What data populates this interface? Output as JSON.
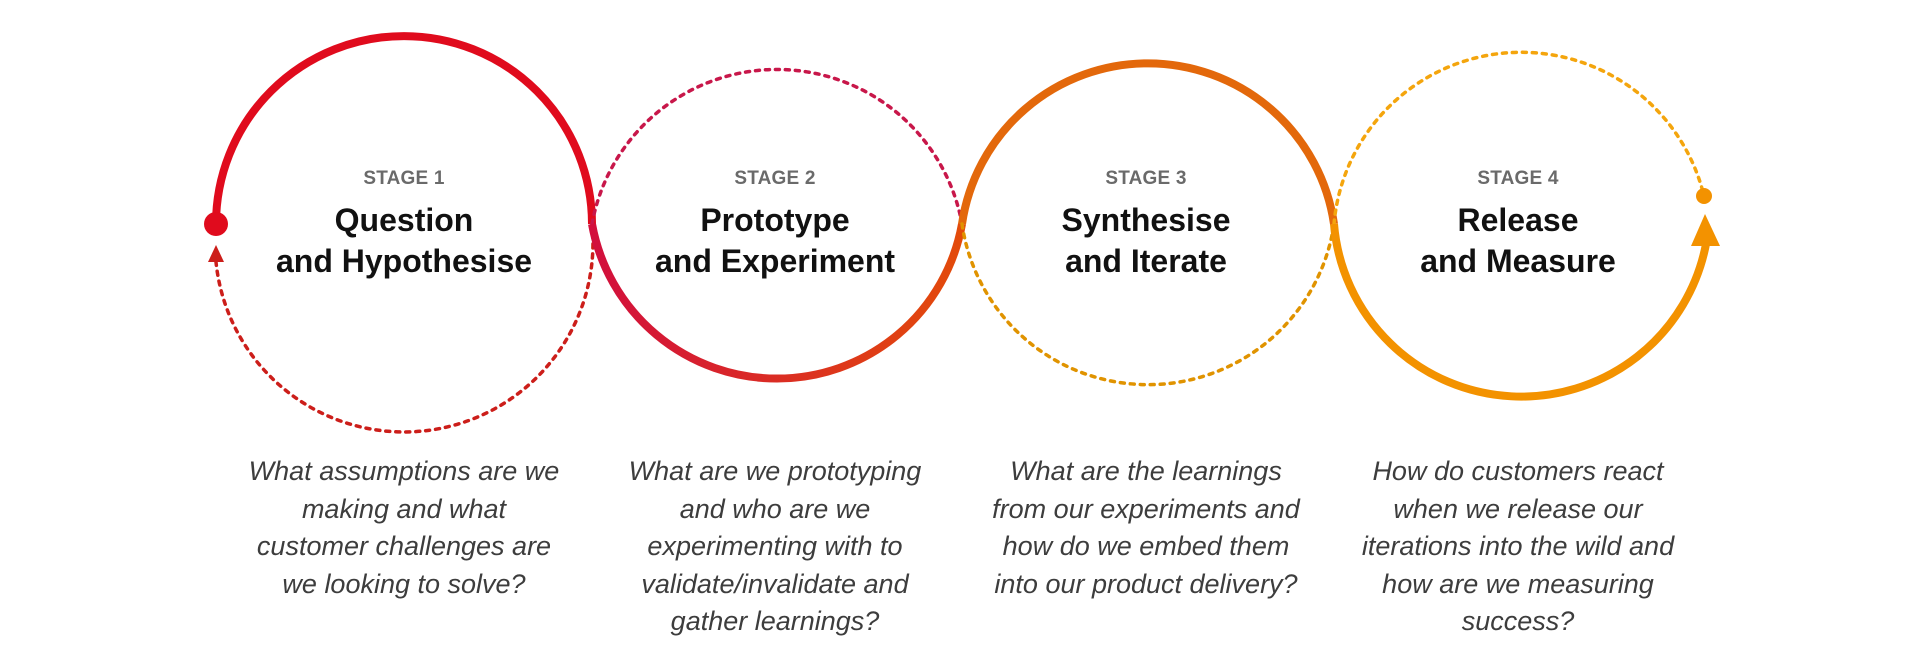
{
  "colors": {
    "stage1": "#e00b1d",
    "stage1_dotted": "#cc1e1a",
    "stage2_dotted": "#c8174a",
    "stage2_grad_start": "#d20f3d",
    "stage2_grad_end": "#e34b0a",
    "stage3": "#e3680b",
    "stage3_dotted": "#e09300",
    "stage4": "#f39200",
    "stage4_dotted": "#f4a50d"
  },
  "stages": [
    {
      "label": "STAGE 1",
      "title_line1": "Question",
      "title_line2": "and Hypothesise",
      "question": "What assumptions are we making and what customer challenges are we looking to solve?"
    },
    {
      "label": "STAGE 2",
      "title_line1": "Prototype",
      "title_line2": "and Experiment",
      "question": "What are we prototyping and who are we experimenting with to validate/invalidate and gather learnings?"
    },
    {
      "label": "STAGE 3",
      "title_line1": "Synthesise",
      "title_line2": "and Iterate",
      "question": "What are the learnings from our experiments and how do we embed them into our product delivery?"
    },
    {
      "label": "STAGE 4",
      "title_line1": "Release",
      "title_line2": "and Measure",
      "question": "How do customers react when we release our iterations into the wild and how are we measuring success?"
    }
  ]
}
